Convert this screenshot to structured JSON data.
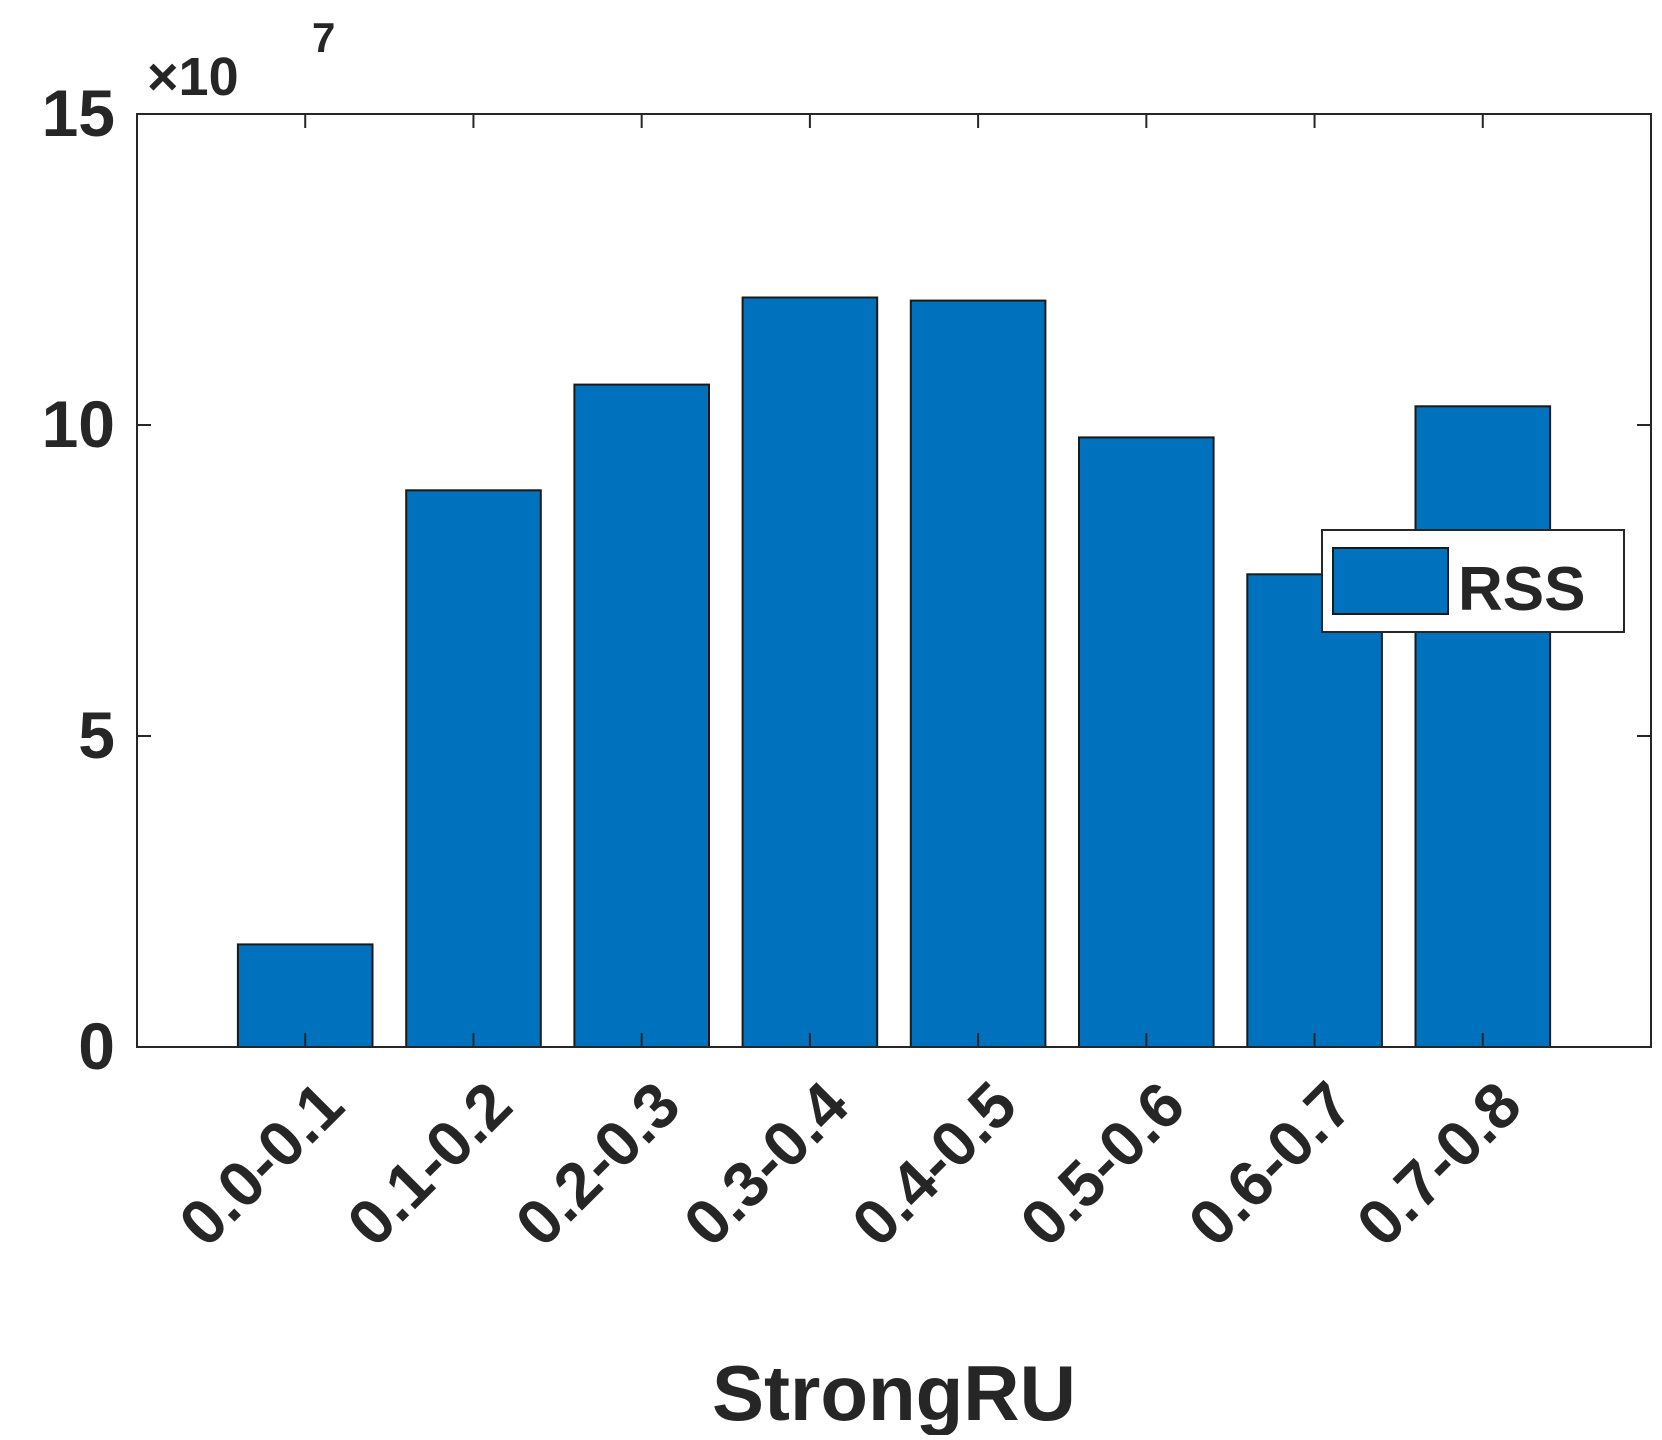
{
  "chart_data": {
    "type": "bar",
    "title": "",
    "xlabel": "StrongRU",
    "ylabel": "",
    "categories": [
      "0.0-0.1",
      "0.1-0.2",
      "0.2-0.3",
      "0.3-0.4",
      "0.4-0.5",
      "0.5-0.6",
      "0.6-0.7",
      "0.7-0.8"
    ],
    "series": [
      {
        "name": "RSS",
        "values": [
          16500000,
          89500000,
          106500000,
          120500000,
          120000000,
          98000000,
          76000000,
          103000000
        ],
        "color": "#0072BD"
      }
    ],
    "ylim": [
      0,
      150000000
    ],
    "yticks": [
      0,
      50000000,
      100000000,
      150000000
    ],
    "ytick_labels": [
      "0",
      "5",
      "10",
      "15"
    ],
    "y_exponent": {
      "base": "×10",
      "power": "7"
    },
    "legend": {
      "position": "right",
      "entries": [
        "RSS"
      ]
    },
    "grid": false
  }
}
